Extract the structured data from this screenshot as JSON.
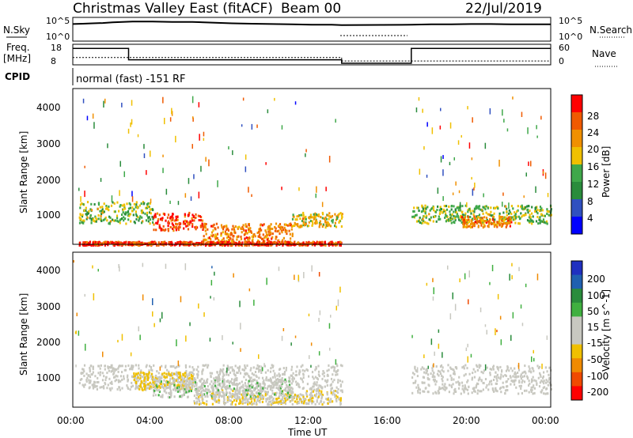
{
  "header": {
    "title": "Christmas Valley East (fitACF)",
    "beam": "Beam 00",
    "date": "22/Jul/2019"
  },
  "summary": {
    "nsky_label": "N.Sky",
    "nsearch_label": "N.Search",
    "nsky_ticks": [
      "10^5",
      "10^0"
    ],
    "nsearch_ticks": [
      "10^5",
      "10^0"
    ],
    "freq_label_line1": "Freq.",
    "freq_label_line2": "[MHz]",
    "freq_ticks": [
      "18",
      "8"
    ],
    "nave_label": "Nave",
    "nave_ticks": [
      "60",
      "0"
    ],
    "cpid_label": "CPID",
    "cpid_text": "normal (fast) -151 RF",
    "nsky_profile": [
      [
        0.0,
        4.0
      ],
      [
        0.5,
        4.1
      ],
      [
        1.0,
        4.2
      ],
      [
        1.5,
        4.3
      ],
      [
        2.0,
        4.5
      ],
      [
        2.5,
        4.6
      ],
      [
        3.0,
        4.7
      ],
      [
        4.0,
        4.7
      ],
      [
        5.0,
        4.6
      ],
      [
        6.0,
        4.6
      ],
      [
        7.0,
        4.4
      ],
      [
        8.0,
        4.2
      ],
      [
        9.0,
        4.1
      ],
      [
        10.0,
        4.0
      ],
      [
        11.0,
        3.9
      ],
      [
        12.0,
        3.8
      ],
      [
        13.0,
        3.8
      ],
      [
        13.5,
        3.7
      ],
      [
        17.0,
        3.8
      ],
      [
        18.0,
        3.9
      ],
      [
        19.0,
        3.9
      ],
      [
        20.0,
        4.0
      ],
      [
        21.0,
        4.0
      ],
      [
        22.0,
        3.9
      ],
      [
        23.0,
        3.9
      ],
      [
        24.0,
        3.9
      ]
    ],
    "freq_profile": [
      [
        0.0,
        16.5
      ],
      [
        2.8,
        16.5
      ],
      [
        2.8,
        10.0
      ],
      [
        13.5,
        10.0
      ],
      [
        13.5,
        8.0
      ],
      [
        17.0,
        8.0
      ],
      [
        17.0,
        16.5
      ],
      [
        24.0,
        16.5
      ]
    ],
    "nave_profile": [
      [
        0.0,
        20
      ],
      [
        13.5,
        20
      ],
      [
        13.5,
        8
      ],
      [
        24.0,
        8
      ]
    ]
  },
  "colors": {
    "power_scale": [
      "#0000ff",
      "#3050c0",
      "#2a8c3c",
      "#3fa84a",
      "#f0c000",
      "#f09000",
      "#f05a00",
      "#ff0000"
    ],
    "velocity_scale": [
      "#ff0000",
      "#f04a00",
      "#f08a00",
      "#f0c000",
      "#c8c8c0",
      "#c8c8c0",
      "#40b040",
      "#2a8c3c",
      "#2060b0",
      "#2030c0"
    ]
  },
  "chart_data": [
    {
      "type": "heatmap",
      "name": "power",
      "ylabel": "Slant Range [km]",
      "colorbar_label": "Power [dB]",
      "colorbar_ticks": [
        "28",
        "24",
        "20",
        "16",
        "12",
        "8",
        "4"
      ],
      "y_ticks": [
        "4000",
        "3000",
        "2000",
        "1000"
      ],
      "ylim": [
        200,
        4500
      ],
      "xlim": [
        0,
        24
      ],
      "data_gap_hours": [
        13.5,
        17.0
      ],
      "scatter_bands": [
        {
          "x_start": 0.3,
          "x_end": 4.0,
          "range_km": [
            800,
            1400
          ],
          "level_db": 14
        },
        {
          "x_start": 4.0,
          "x_end": 6.5,
          "range_km": [
            600,
            1100
          ],
          "level_db": 26
        },
        {
          "x_start": 6.5,
          "x_end": 11.0,
          "range_km": [
            300,
            800
          ],
          "level_db": 22
        },
        {
          "x_start": 11.0,
          "x_end": 13.5,
          "range_km": [
            700,
            1100
          ],
          "level_db": 18
        },
        {
          "x_start": 17.0,
          "x_end": 24.0,
          "range_km": [
            800,
            1300
          ],
          "level_db": 14
        },
        {
          "x_start": 19.5,
          "x_end": 22.0,
          "range_km": [
            700,
            1000
          ],
          "level_db": 22
        },
        {
          "x_start": 0.3,
          "x_end": 13.5,
          "range_km": [
            200,
            300
          ],
          "level_db": 26
        }
      ]
    },
    {
      "type": "heatmap",
      "name": "velocity",
      "ylabel": "Slant Range [km]",
      "colorbar_label": "Velocity [m s^-1]",
      "colorbar_ticks": [
        "200",
        "100",
        "50",
        "15",
        "-15",
        "-50",
        "-100",
        "-200"
      ],
      "y_ticks": [
        "4000",
        "3000",
        "2000",
        "1000"
      ],
      "ylim": [
        200,
        4500
      ],
      "xlim": [
        0,
        24
      ],
      "x_ticks": [
        "00:00",
        "04:00",
        "08:00",
        "12:00",
        "16:00",
        "20:00",
        "00:00"
      ],
      "xlabel": "Time UT",
      "data_gap_hours": [
        13.5,
        17.0
      ],
      "scatter_bands": [
        {
          "x_start": 0.3,
          "x_end": 13.5,
          "range_km": [
            700,
            1400
          ],
          "level_ms": 0
        },
        {
          "x_start": 3.0,
          "x_end": 6.0,
          "range_km": [
            700,
            1200
          ],
          "level_ms": -70
        },
        {
          "x_start": 6.0,
          "x_end": 13.5,
          "range_km": [
            300,
            700
          ],
          "level_ms": -40
        },
        {
          "x_start": 4.0,
          "x_end": 11.0,
          "range_km": [
            500,
            1000
          ],
          "level_ms": 30
        },
        {
          "x_start": 17.0,
          "x_end": 24.0,
          "range_km": [
            600,
            1400
          ],
          "level_ms": 0
        }
      ]
    }
  ]
}
